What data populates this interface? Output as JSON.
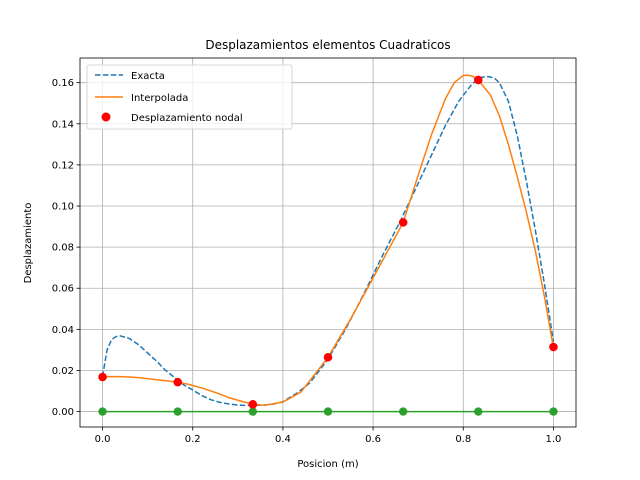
{
  "chart_data": {
    "type": "line",
    "title": "Desplazamientos elementos Cuadraticos",
    "xlabel": "Posicion (m)",
    "ylabel": "Desplazamiento",
    "xlim": [
      -0.05,
      1.05
    ],
    "ylim": [
      -0.0075,
      0.172
    ],
    "xticks": [
      0.0,
      0.2,
      0.4,
      0.6,
      0.8,
      1.0
    ],
    "xtick_labels": [
      "0.0",
      "0.2",
      "0.4",
      "0.6",
      "0.8",
      "1.0"
    ],
    "yticks": [
      0.0,
      0.02,
      0.04,
      0.06,
      0.08,
      0.1,
      0.12,
      0.14,
      0.16
    ],
    "ytick_labels": [
      "0.00",
      "0.02",
      "0.04",
      "0.06",
      "0.08",
      "0.10",
      "0.12",
      "0.14",
      "0.16"
    ],
    "grid": true,
    "legend_position": "top-left",
    "series": [
      {
        "name": "Exacta",
        "kind": "line",
        "style": "dashed",
        "color": "#1f77b4",
        "x": [
          0.0,
          0.01,
          0.02,
          0.03,
          0.04,
          0.06,
          0.08,
          0.1,
          0.12,
          0.14,
          0.16,
          0.18,
          0.2,
          0.22,
          0.24,
          0.26,
          0.28,
          0.3,
          0.32,
          0.34,
          0.36,
          0.38,
          0.4,
          0.43,
          0.46,
          0.5,
          0.54,
          0.58,
          0.62,
          0.66,
          0.7,
          0.73,
          0.76,
          0.79,
          0.82,
          0.84,
          0.85,
          0.86,
          0.87,
          0.88,
          0.9,
          0.92,
          0.94,
          0.96,
          0.98,
          1.0
        ],
        "y": [
          0.017,
          0.03,
          0.035,
          0.0365,
          0.0368,
          0.0355,
          0.0325,
          0.0285,
          0.0245,
          0.02,
          0.0165,
          0.013,
          0.0105,
          0.0078,
          0.0058,
          0.0045,
          0.0037,
          0.0032,
          0.003,
          0.003,
          0.0032,
          0.0037,
          0.0048,
          0.0088,
          0.014,
          0.0255,
          0.0405,
          0.0575,
          0.0755,
          0.0925,
          0.111,
          0.125,
          0.139,
          0.151,
          0.1595,
          0.1625,
          0.163,
          0.1628,
          0.162,
          0.16,
          0.151,
          0.134,
          0.112,
          0.088,
          0.062,
          0.034
        ]
      },
      {
        "name": "Interpolada",
        "kind": "line",
        "style": "solid",
        "color": "#ff7f0e",
        "x": [
          0.0,
          0.02,
          0.04,
          0.06,
          0.08,
          0.1,
          0.12,
          0.14,
          0.1667,
          0.19,
          0.22,
          0.25,
          0.28,
          0.31,
          0.3333,
          0.36,
          0.4,
          0.44,
          0.5,
          0.55,
          0.6,
          0.6667,
          0.7,
          0.73,
          0.76,
          0.78,
          0.8,
          0.81,
          0.82,
          0.8333,
          0.86,
          0.88,
          0.9,
          0.92,
          0.94,
          0.96,
          0.98,
          1.0
        ],
        "y": [
          0.017,
          0.017,
          0.017,
          0.0168,
          0.0165,
          0.016,
          0.0155,
          0.015,
          0.0143,
          0.0133,
          0.0115,
          0.0093,
          0.0068,
          0.0049,
          0.0035,
          0.0031,
          0.0046,
          0.0095,
          0.0264,
          0.045,
          0.065,
          0.092,
          0.115,
          0.135,
          0.152,
          0.16,
          0.1635,
          0.1636,
          0.1632,
          0.1613,
          0.154,
          0.144,
          0.13,
          0.114,
          0.097,
          0.078,
          0.056,
          0.031
        ]
      },
      {
        "name": "Desplazamiento nodal",
        "kind": "scatter",
        "color": "#ff0000",
        "x": [
          0.0,
          0.1667,
          0.3333,
          0.5,
          0.6667,
          0.8333,
          1.0
        ],
        "y": [
          0.0168,
          0.0143,
          0.0035,
          0.0264,
          0.092,
          0.1613,
          0.0314
        ]
      },
      {
        "name": "",
        "kind": "line-markers",
        "color": "#2ca02c",
        "x": [
          0.0,
          0.1667,
          0.3333,
          0.5,
          0.6667,
          0.8333,
          1.0
        ],
        "y": [
          0.0,
          0.0,
          0.0,
          0.0,
          0.0,
          0.0,
          0.0
        ]
      }
    ]
  }
}
